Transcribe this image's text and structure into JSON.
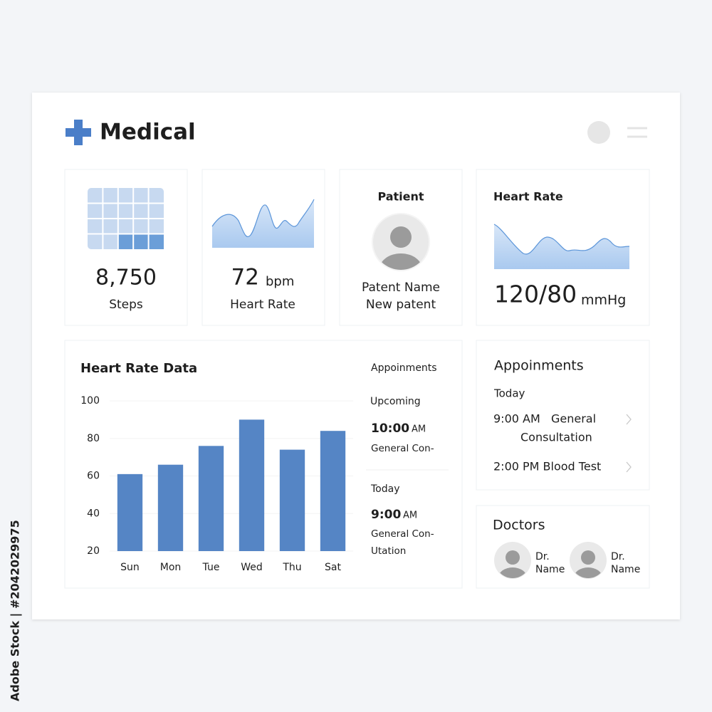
{
  "watermark": "Adobe Stock | #2042029975",
  "header": {
    "title": "Medical"
  },
  "stats": {
    "steps": {
      "value": "8,750",
      "label": "Steps"
    },
    "heart_rate": {
      "value": "72",
      "unit": "bpm",
      "label": "Heart Rate"
    },
    "patient": {
      "title": "Patient",
      "name": "Patent Name",
      "status": "New patent"
    },
    "blood_pressure": {
      "title": "Heart Rate",
      "value": "120/80",
      "unit": "mmHg"
    }
  },
  "chart_data": {
    "type": "bar",
    "title": "Heart Rate Data",
    "categories": [
      "Sun",
      "Mon",
      "Tue",
      "Wed",
      "Thu",
      "Sat"
    ],
    "values": [
      61,
      66,
      76,
      90,
      74,
      84
    ],
    "color": "#5585c5",
    "ylim": [
      20,
      100
    ],
    "yticks": [
      20,
      40,
      60,
      80,
      100
    ],
    "grid": true
  },
  "chart_appointments": {
    "title": "Appoinments",
    "items": [
      {
        "heading": "Upcoming",
        "time": "10:00",
        "period": "AM",
        "lines": [
          "General Con-"
        ]
      },
      {
        "heading": "Today",
        "time": "9:00",
        "period": "AM",
        "lines": [
          "General Con-",
          "Utation"
        ]
      }
    ]
  },
  "appointments": {
    "title": "Appoinments",
    "day": "Today",
    "items": [
      {
        "time": "9:00 AM",
        "lines": [
          "General",
          "Consultation"
        ]
      },
      {
        "text": "2:00 PM Blood Test"
      }
    ]
  },
  "doctors": {
    "title": "Doctors",
    "items": [
      {
        "prefix": "Dr.",
        "name": "Name"
      },
      {
        "prefix": "Dr.",
        "name": "Name"
      }
    ]
  }
}
